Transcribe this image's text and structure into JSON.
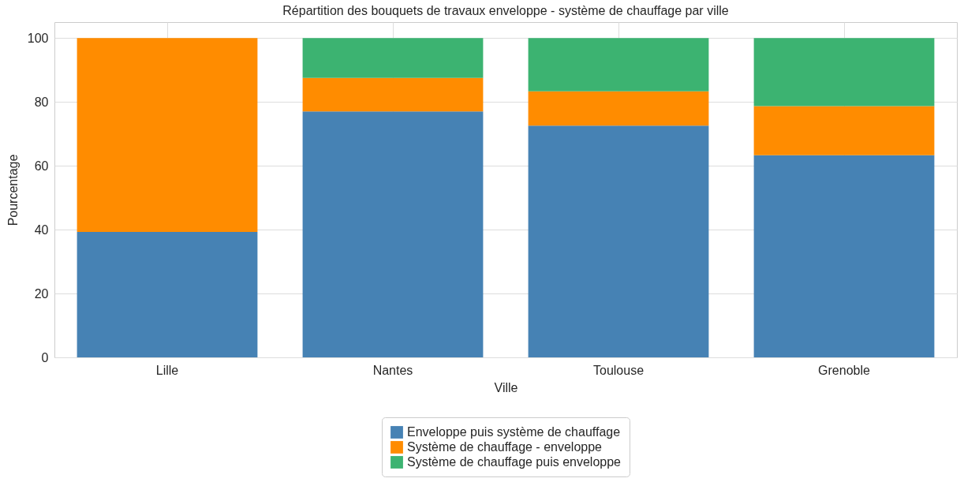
{
  "chart_data": {
    "type": "bar",
    "title": "Répartition des bouquets de travaux enveloppe - système de chauffage par ville",
    "xlabel": "Ville",
    "ylabel": "Pourcentage",
    "categories": [
      "Lille",
      "Nantes",
      "Toulouse",
      "Grenoble"
    ],
    "series": [
      {
        "name": "Enveloppe puis système de chauffage",
        "color": "#4682b4",
        "values": [
          39.3,
          77.0,
          72.6,
          63.3
        ]
      },
      {
        "name": "Système de chauffage - enveloppe",
        "color": "#ff8c00",
        "values": [
          60.7,
          10.5,
          10.7,
          15.4
        ]
      },
      {
        "name": "Système de chauffage puis enveloppe",
        "color": "#3cb371",
        "values": [
          0,
          12.5,
          16.7,
          21.3
        ]
      }
    ],
    "stacked": true,
    "ylim": [
      0,
      105
    ],
    "yticks": [
      0,
      20,
      40,
      60,
      80,
      100
    ],
    "grid": true,
    "legend": "bottom"
  }
}
